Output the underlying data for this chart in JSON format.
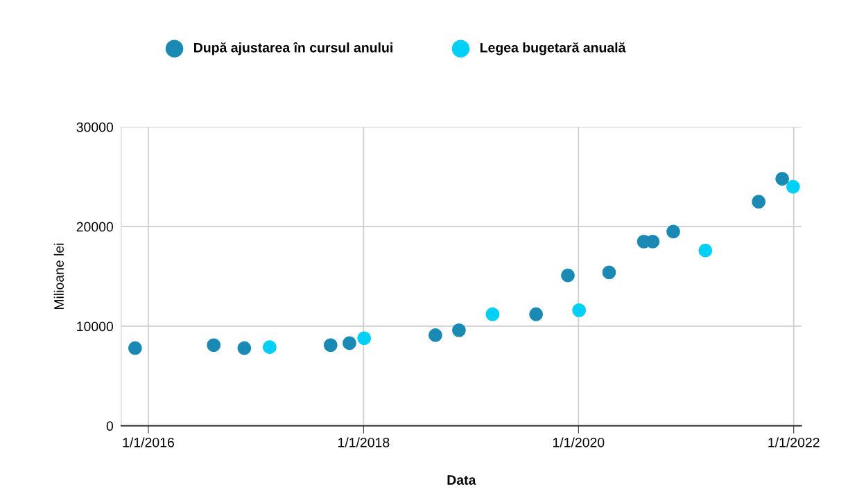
{
  "chart_data": {
    "type": "scatter",
    "xlabel": "Data",
    "ylabel": "Milioane lei",
    "xlim": [
      "2015-10-01",
      "2022-01-27"
    ],
    "xticks": [
      {
        "value": "2016-01-01",
        "label": "1/1/2016"
      },
      {
        "value": "2018-01-01",
        "label": "1/1/2018"
      },
      {
        "value": "2020-01-01",
        "label": "1/1/2020"
      },
      {
        "value": "2022-01-01",
        "label": "1/1/2022"
      }
    ],
    "ylim": [
      0,
      30000
    ],
    "yticks": [
      0,
      10000,
      20000,
      30000
    ],
    "grid": true,
    "legend": "top",
    "marker": "circle",
    "series": [
      {
        "name": "După ajustarea în cursul anului",
        "color": "#1a8ab5",
        "x": [
          "2015-11-17",
          "2016-08-10",
          "2016-11-22",
          "2017-09-11",
          "2017-11-14",
          "2018-09-02",
          "2018-11-21",
          "2019-08-10",
          "2019-11-26",
          "2020-04-14",
          "2020-08-10",
          "2020-09-09",
          "2020-11-18",
          "2021-09-04",
          "2021-11-23"
        ],
        "values": [
          7800,
          8100,
          7800,
          8100,
          8300,
          9100,
          9600,
          11200,
          15100,
          15400,
          18500,
          18500,
          19500,
          22500,
          24800
        ]
      },
      {
        "name": "Legea bugetară anuală",
        "color": "#00d0f5",
        "x": [
          "2017-02-16",
          "2018-01-03",
          "2019-03-15",
          "2020-01-03",
          "2021-03-07",
          "2021-12-30"
        ],
        "values": [
          7900,
          8800,
          11200,
          11600,
          17600,
          24000
        ]
      }
    ]
  }
}
